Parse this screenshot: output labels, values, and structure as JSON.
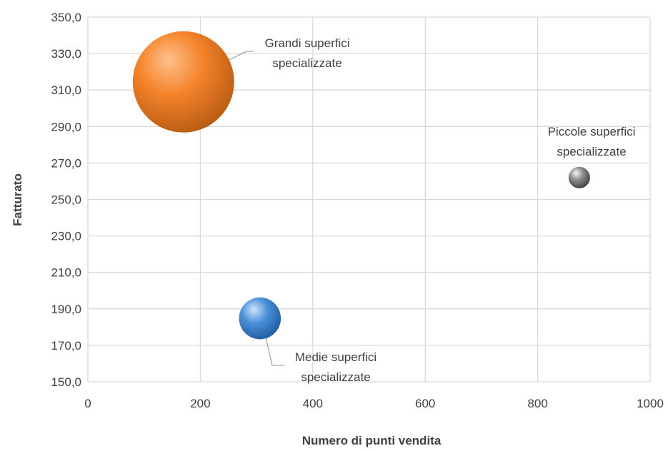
{
  "chart_data": {
    "type": "bubble",
    "xlabel": "Numero di punti vendita",
    "ylabel": "Fatturato",
    "xlim": [
      0,
      1000
    ],
    "ylim": [
      150,
      350
    ],
    "x_ticks": [
      "0",
      "200",
      "400",
      "600",
      "800",
      "1000"
    ],
    "y_ticks": [
      "150,0",
      "170,0",
      "190,0",
      "210,0",
      "230,0",
      "250,0",
      "270,0",
      "290,0",
      "310,0",
      "330,0",
      "350,0"
    ],
    "grid": true,
    "points": [
      {
        "label_lines": [
          "Grandi superfici",
          "specializzate"
        ],
        "x": 170,
        "y": 314.5,
        "color": "#f5842b",
        "shade": "#b55a12",
        "highlight": "#ffc08c",
        "size_relative": 1.0
      },
      {
        "label_lines": [
          "Medie superfici",
          "specializzate"
        ],
        "x": 306,
        "y": 184.8,
        "color": "#4a8fd8",
        "shade": "#1f5a9e",
        "highlight": "#cfe4fb",
        "size_relative": 0.17
      },
      {
        "label_lines": [
          "Piccole superfici",
          "specializzate"
        ],
        "x": 874,
        "y": 262,
        "color": "#8c8c8c",
        "shade": "#3c3c3c",
        "highlight": "#f2f2f2",
        "size_relative": 0.045
      }
    ]
  }
}
